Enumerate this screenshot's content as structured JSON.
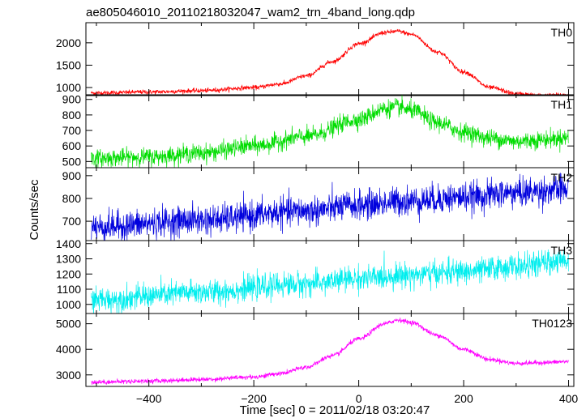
{
  "chart_data": {
    "type": "line",
    "title": "ae805046010_20110218032047_wam2_trn_4band_long.qdp",
    "xlabel": "Time [sec] 0 = 2011/02/18 03:20:47",
    "ylabel": "Counts/sec",
    "xlim": [
      -520,
      410
    ],
    "x_ticks": [
      -400,
      -200,
      0,
      200,
      400
    ],
    "grid": false,
    "panels": [
      {
        "name": "TH0",
        "color": "#ff0000",
        "ylim": [
          820,
          2450
        ],
        "y_ticks": [
          1000,
          1500,
          2000
        ],
        "noise": 25,
        "trend": {
          "x": [
            -500,
            -400,
            -300,
            -200,
            -150,
            -100,
            -50,
            0,
            50,
            75,
            100,
            150,
            200,
            250,
            300,
            350,
            400
          ],
          "y": [
            880,
            900,
            930,
            1000,
            1080,
            1260,
            1580,
            1980,
            2230,
            2260,
            2190,
            1800,
            1350,
            1000,
            860,
            820,
            840
          ]
        }
      },
      {
        "name": "TH1",
        "color": "#00dd00",
        "ylim": [
          460,
          930
        ],
        "y_ticks": [
          500,
          600,
          700,
          800,
          900
        ],
        "noise": 28,
        "trend": {
          "x": [
            -500,
            -400,
            -300,
            -200,
            -100,
            0,
            50,
            75,
            100,
            150,
            200,
            250,
            300,
            350,
            400
          ],
          "y": [
            520,
            530,
            555,
            600,
            660,
            770,
            840,
            850,
            830,
            750,
            690,
            650,
            630,
            640,
            655
          ]
        }
      },
      {
        "name": "TH2",
        "color": "#0000dd",
        "ylim": [
          615,
          935
        ],
        "y_ticks": [
          700,
          800,
          900
        ],
        "noise": 32,
        "trend": {
          "x": [
            -500,
            -300,
            -100,
            0,
            100,
            200,
            300,
            400
          ],
          "y": [
            675,
            705,
            745,
            770,
            790,
            805,
            825,
            840
          ]
        }
      },
      {
        "name": "TH3",
        "color": "#00eeee",
        "ylim": [
          940,
          1420
        ],
        "y_ticks": [
          1000,
          1100,
          1200,
          1300,
          1400
        ],
        "noise": 40,
        "trend": {
          "x": [
            -500,
            -300,
            -100,
            0,
            100,
            200,
            300,
            400
          ],
          "y": [
            1030,
            1080,
            1135,
            1170,
            1195,
            1215,
            1250,
            1290
          ]
        }
      },
      {
        "name": "TH0123",
        "color": "#ff00ff",
        "ylim": [
          2550,
          5400
        ],
        "y_ticks": [
          3000,
          4000,
          5000
        ],
        "noise": 45,
        "trend": {
          "x": [
            -500,
            -400,
            -300,
            -200,
            -150,
            -100,
            -50,
            0,
            50,
            75,
            100,
            150,
            200,
            250,
            300,
            350,
            400
          ],
          "y": [
            2720,
            2760,
            2820,
            2920,
            3050,
            3300,
            3750,
            4400,
            5000,
            5150,
            5050,
            4550,
            4000,
            3600,
            3450,
            3480,
            3520
          ]
        }
      }
    ]
  }
}
